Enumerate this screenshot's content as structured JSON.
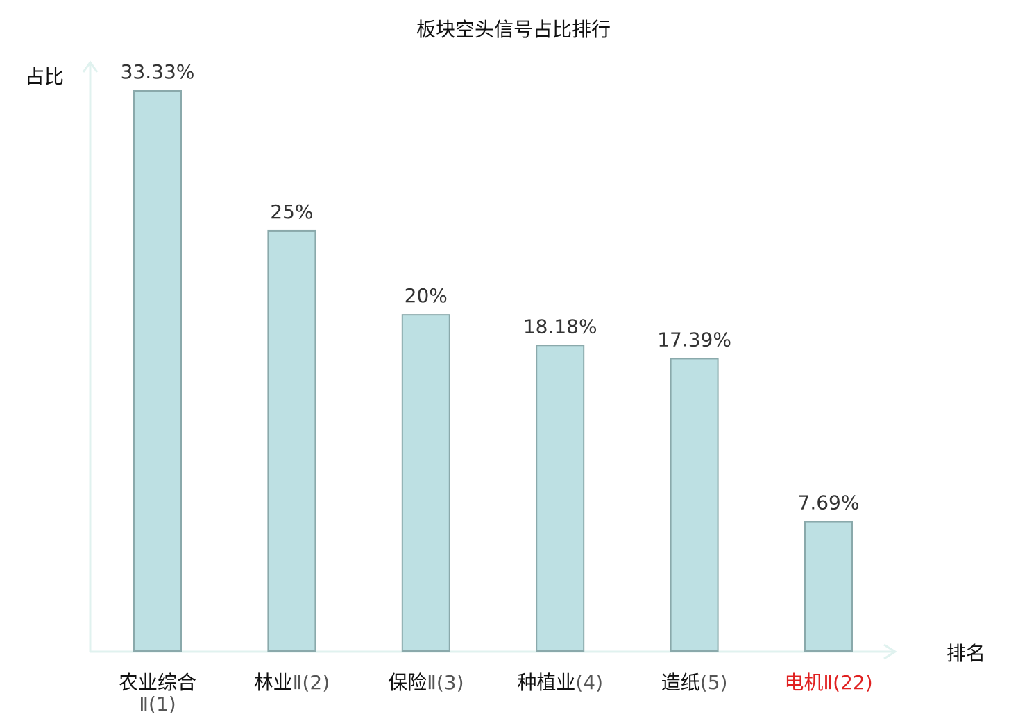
{
  "chart_data": {
    "type": "bar",
    "title": "板块空头信号占比排行",
    "ylabel": "占比",
    "xlabel": "排名",
    "categories": [
      {
        "name": "农业综合",
        "rank": "Ⅱ(1)",
        "highlight": false
      },
      {
        "name": "林业",
        "rank": "Ⅱ(2)",
        "highlight": false
      },
      {
        "name": "保险",
        "rank": "Ⅱ(3)",
        "highlight": false
      },
      {
        "name": "种植业",
        "rank": "(4)",
        "highlight": false
      },
      {
        "name": "造纸",
        "rank": "(5)",
        "highlight": false
      },
      {
        "name": "电机",
        "rank": "Ⅱ(22)",
        "highlight": true
      }
    ],
    "values": [
      33.33,
      25,
      20,
      18.18,
      17.39,
      7.69
    ],
    "value_labels": [
      "33.33%",
      "25%",
      "20%",
      "18.18%",
      "17.39%",
      "7.69%"
    ],
    "ylim": [
      0,
      33.33
    ],
    "grid": false,
    "colors": {
      "bar_fill": "#bde0e3",
      "bar_stroke": "#8aa9ab",
      "axis": "#e0f2ef",
      "highlight_text": "#e02020",
      "label_text": "#333333",
      "title_text": "#111111"
    }
  }
}
